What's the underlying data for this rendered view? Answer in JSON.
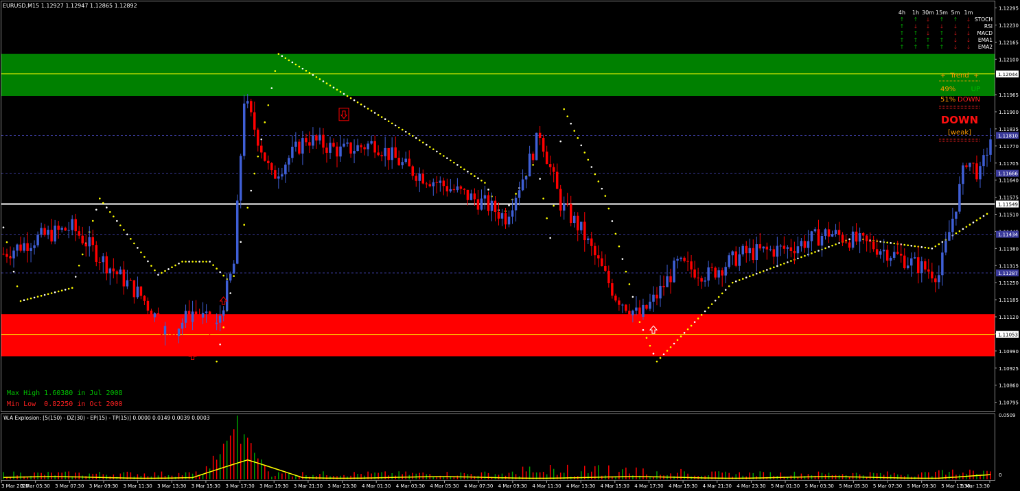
{
  "window": {
    "symbol_header": "EURUSD,M15  1.12927 1.12947 1.12865 1.12892"
  },
  "colors": {
    "background": "#000000",
    "bull": "#3f5fd6",
    "bear": "#ff0000",
    "resistance_zone": "#008000",
    "support_zone": "#ff0000",
    "pivot_line": "#ffffff",
    "zone_mid": "#ffff00",
    "sar_dots": "#ffff00",
    "sar_dots_alt": "#ffffff",
    "grid_dash": "#3a3a9a",
    "price_label_bg": "#ffffff",
    "price_label_dash_bg": "#3a3a9a",
    "hist_green": "#00a000",
    "hist_red": "#ff0000",
    "explosion_line": "#ffff00"
  },
  "price_axis": {
    "ticks": [
      "1.12295",
      "1.12230",
      "1.12165",
      "1.12100",
      "1.11965",
      "1.11900",
      "1.11835",
      "1.11770",
      "1.11705",
      "1.11640",
      "1.11575",
      "1.11510",
      "1.11445",
      "1.11380",
      "1.11315",
      "1.11250",
      "1.11185",
      "1.11120",
      "1.11055",
      "1.10990",
      "1.10925",
      "1.10860",
      "1.10795"
    ],
    "range": [
      1.1076,
      1.1232
    ]
  },
  "price_labels": [
    {
      "text": "1.12044",
      "value": 1.12044,
      "style": "zone"
    },
    {
      "text": "1.11810",
      "value": 1.1181,
      "style": "dash"
    },
    {
      "text": "1.11666",
      "value": 1.11666,
      "style": "dash"
    },
    {
      "text": "1.11549",
      "value": 1.11549,
      "style": "pivot"
    },
    {
      "text": "1.11434",
      "value": 1.11434,
      "style": "dash"
    },
    {
      "text": "1.11287",
      "value": 1.11287,
      "style": "dash"
    },
    {
      "text": "1.11053",
      "value": 1.11053,
      "style": "zone"
    }
  ],
  "zones": {
    "resistance": {
      "top": 1.1212,
      "bottom": 1.1196,
      "mid": 1.12044
    },
    "support": {
      "top": 1.1113,
      "bottom": 1.1097,
      "mid": 1.11053
    },
    "pivot": 1.11549
  },
  "time_axis": {
    "ticks": [
      "3 Mar 2020",
      "3 Mar 05:30",
      "3 Mar 07:30",
      "3 Mar 09:30",
      "3 Mar 11:30",
      "3 Mar 13:30",
      "3 Mar 15:30",
      "3 Mar 17:30",
      "3 Mar 19:30",
      "3 Mar 21:30",
      "3 Mar 23:30",
      "4 Mar 01:30",
      "4 Mar 03:30",
      "4 Mar 05:30",
      "4 Mar 07:30",
      "4 Mar 09:30",
      "4 Mar 11:30",
      "4 Mar 13:30",
      "4 Mar 15:30",
      "4 Mar 17:30",
      "4 Mar 19:30",
      "4 Mar 21:30",
      "4 Mar 23:30",
      "5 Mar 01:30",
      "5 Mar 03:30",
      "5 Mar 05:30",
      "5 Mar 07:30",
      "5 Mar 09:30",
      "5 Mar 11:30",
      "5 Mar 13:30"
    ]
  },
  "signal_table": {
    "timeframes": [
      "4h",
      "1h",
      "30m",
      "15m",
      "5m",
      "1m"
    ],
    "indicators": [
      "STOCH",
      "RSI",
      "MACD",
      "EMA1",
      "EMA2"
    ],
    "arrows": [
      [
        "up",
        "up",
        "down",
        "up",
        "up",
        "down"
      ],
      [
        "up",
        "down",
        "down",
        "down",
        "down",
        "down"
      ],
      [
        "up",
        "up",
        "down",
        "up",
        "down",
        "down"
      ],
      [
        "up",
        "up",
        "up",
        "up",
        "down",
        "down"
      ],
      [
        "up",
        "up",
        "up",
        "up",
        "down",
        "down"
      ]
    ],
    "up_glyph": "🡑",
    "down_glyph": "🡓"
  },
  "trend_box": {
    "title": "+  Trend  +",
    "up_pct": "49%",
    "up_label": "UP",
    "down_pct": "51%",
    "down_label": "DOWN",
    "verdict": "DOWN",
    "strength": "[weak]"
  },
  "extremes": {
    "max_high": "Max High 1.60380 in Jul 2008",
    "min_low": "Min Low  0.82250 in Oct 2000"
  },
  "subwindow": {
    "label": "W.A Explosion: [5(150) - DZ(30) - EP(15) - TP(15)] 0.0000 0.0149 0.0039 0.0003",
    "ticks": [
      "0.0509",
      "0"
    ],
    "max": 0.0509
  },
  "chart_data": {
    "type": "candlestick",
    "title": "EURUSD,M15",
    "candles": {
      "count": 288,
      "key_points": [
        {
          "i": 0,
          "price": 1.1136
        },
        {
          "i": 10,
          "price": 1.1142
        },
        {
          "i": 20,
          "price": 1.1146
        },
        {
          "i": 30,
          "price": 1.1132
        },
        {
          "i": 40,
          "price": 1.112
        },
        {
          "i": 48,
          "price": 1.1105
        },
        {
          "i": 55,
          "price": 1.1114
        },
        {
          "i": 62,
          "price": 1.1108
        },
        {
          "i": 67,
          "price": 1.1132
        },
        {
          "i": 70,
          "price": 1.1195
        },
        {
          "i": 78,
          "price": 1.1165
        },
        {
          "i": 88,
          "price": 1.118
        },
        {
          "i": 98,
          "price": 1.1175
        },
        {
          "i": 108,
          "price": 1.1178
        },
        {
          "i": 118,
          "price": 1.1168
        },
        {
          "i": 128,
          "price": 1.1162
        },
        {
          "i": 140,
          "price": 1.1155
        },
        {
          "i": 146,
          "price": 1.115
        },
        {
          "i": 152,
          "price": 1.1168
        },
        {
          "i": 156,
          "price": 1.1182
        },
        {
          "i": 162,
          "price": 1.1155
        },
        {
          "i": 168,
          "price": 1.1145
        },
        {
          "i": 178,
          "price": 1.112
        },
        {
          "i": 185,
          "price": 1.1112
        },
        {
          "i": 190,
          "price": 1.112
        },
        {
          "i": 196,
          "price": 1.1132
        },
        {
          "i": 205,
          "price": 1.1128
        },
        {
          "i": 215,
          "price": 1.1136
        },
        {
          "i": 228,
          "price": 1.1138
        },
        {
          "i": 240,
          "price": 1.1144
        },
        {
          "i": 255,
          "price": 1.1138
        },
        {
          "i": 265,
          "price": 1.1132
        },
        {
          "i": 272,
          "price": 1.1128
        },
        {
          "i": 277,
          "price": 1.1155
        },
        {
          "i": 280,
          "price": 1.1172
        },
        {
          "i": 284,
          "price": 1.1166
        },
        {
          "i": 287,
          "price": 1.118
        }
      ]
    },
    "sar": {
      "key_points": [
        {
          "i": 0,
          "price": 1.1146
        },
        {
          "i": 5,
          "price": 1.1118
        },
        {
          "i": 20,
          "price": 1.1123
        },
        {
          "i": 28,
          "price": 1.1157
        },
        {
          "i": 45,
          "price": 1.1128
        },
        {
          "i": 52,
          "price": 1.1133
        },
        {
          "i": 60,
          "price": 1.1133
        },
        {
          "i": 66,
          "price": 1.1125
        },
        {
          "i": 62,
          "price": 1.1095
        },
        {
          "i": 80,
          "price": 1.1212
        },
        {
          "i": 120,
          "price": 1.118
        },
        {
          "i": 140,
          "price": 1.1163
        },
        {
          "i": 145,
          "price": 1.115
        },
        {
          "i": 155,
          "price": 1.1172
        },
        {
          "i": 159,
          "price": 1.1142
        },
        {
          "i": 163,
          "price": 1.1191
        },
        {
          "i": 175,
          "price": 1.1158
        },
        {
          "i": 185,
          "price": 1.111
        },
        {
          "i": 190,
          "price": 1.1095
        },
        {
          "i": 212,
          "price": 1.1125
        },
        {
          "i": 247,
          "price": 1.1142
        },
        {
          "i": 270,
          "price": 1.1138
        },
        {
          "i": 287,
          "price": 1.1152
        }
      ]
    },
    "markers": [
      {
        "type": "up-arrow",
        "i": 55,
        "price": 1.1097,
        "color": "#ff0000"
      },
      {
        "type": "up-arrow",
        "i": 64,
        "price": 1.1118,
        "color": "#ff0000"
      },
      {
        "type": "down-arrow-box",
        "i": 99,
        "price": 1.1189,
        "color": "#ff0000"
      },
      {
        "type": "up-arrow",
        "i": 189,
        "price": 1.1107,
        "color": "#ffffff"
      }
    ],
    "histogram": {
      "peak_index": 68,
      "peak_value": 0.0509,
      "ma_peak": 0.0149
    }
  }
}
